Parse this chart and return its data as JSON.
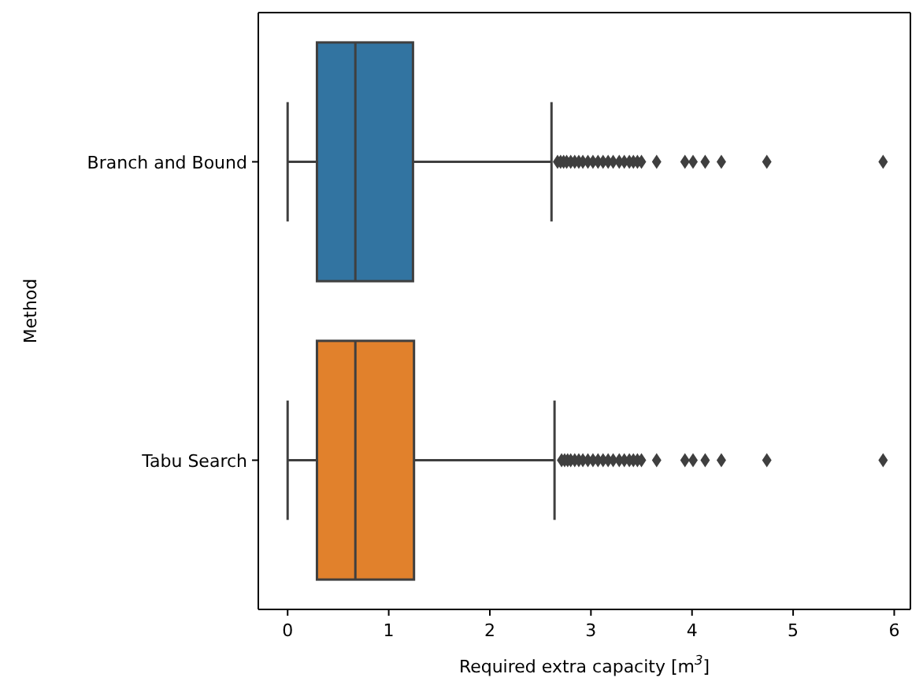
{
  "chart_data": {
    "type": "box",
    "orientation": "horizontal",
    "xlabel": "Required extra capacity [m$^{3}$]",
    "ylabel": "Method",
    "categories": [
      "Branch and Bound",
      "Tabu Search"
    ],
    "xlim": [
      -0.29,
      6.16
    ],
    "xticks": [
      0,
      1,
      2,
      3,
      4,
      5,
      6
    ],
    "marker": "diamond",
    "grid": false,
    "series": [
      {
        "colors": [
          "#3274a1",
          "#e1812c"
        ],
        "boxes": [
          {
            "low": 0,
            "q1": 0.29,
            "median": 0.67,
            "q3": 1.24,
            "high": 2.61,
            "outliers": [
              2.67,
              2.7,
              2.73,
              2.76,
              2.8,
              2.84,
              2.88,
              2.92,
              2.97,
              3.02,
              3.07,
              3.12,
              3.17,
              3.22,
              3.28,
              3.33,
              3.38,
              3.42,
              3.46,
              3.5,
              3.65,
              3.93,
              4.01,
              4.13,
              4.29,
              4.74,
              5.89
            ]
          },
          {
            "low": 0,
            "q1": 0.29,
            "median": 0.67,
            "q3": 1.25,
            "high": 2.64,
            "outliers": [
              2.71,
              2.74,
              2.77,
              2.8,
              2.84,
              2.88,
              2.92,
              2.97,
              3.02,
              3.07,
              3.12,
              3.17,
              3.22,
              3.28,
              3.33,
              3.38,
              3.42,
              3.46,
              3.5,
              3.65,
              3.93,
              4.01,
              4.13,
              4.29,
              4.74,
              5.89
            ]
          }
        ]
      }
    ]
  }
}
